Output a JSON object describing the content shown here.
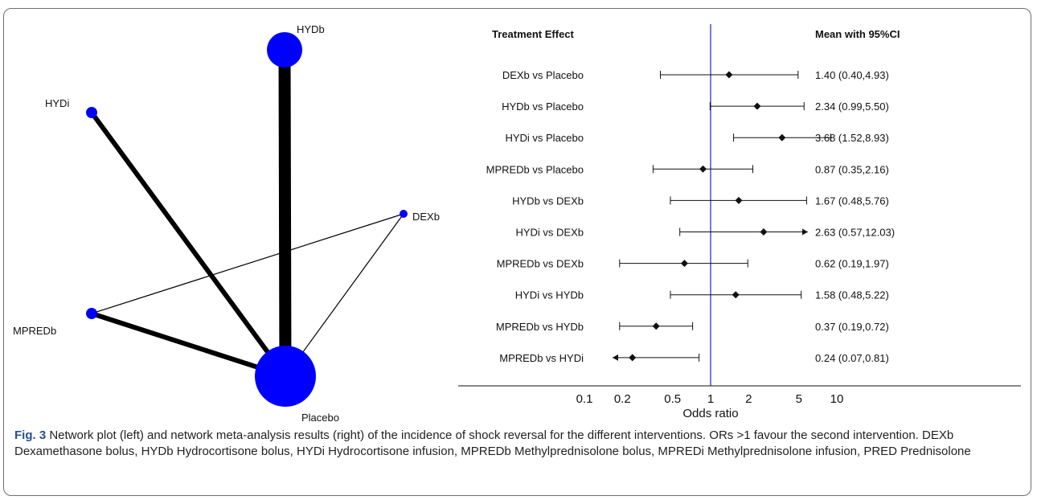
{
  "caption": {
    "fig_number": "Fig. 3",
    "text": "Network plot (left) and network meta-analysis results (right) of the incidence of shock reversal for the different interventions. ORs >1 favour the second intervention. DEXb Dexamethasone bolus, HYDb Hydrocortisone bolus, HYDi Hydrocortisone infusion, MPREDb Methylprednisolone bolus, MPREDi Methylprednisolone infusion, PRED Prednisolone"
  },
  "chart_data": [
    {
      "type": "network",
      "nodes": [
        {
          "id": "HYDb",
          "label": "HYDb",
          "size": "large"
        },
        {
          "id": "HYDi",
          "label": "HYDi",
          "size": "small"
        },
        {
          "id": "DEXb",
          "label": "DEXb",
          "size": "small"
        },
        {
          "id": "MPREDb",
          "label": "MPREDb",
          "size": "small"
        },
        {
          "id": "Placebo",
          "label": "Placebo",
          "size": "largest"
        }
      ],
      "edges": [
        {
          "from": "HYDb",
          "to": "Placebo",
          "weight": "thickest"
        },
        {
          "from": "HYDi",
          "to": "Placebo",
          "weight": "thick"
        },
        {
          "from": "MPREDb",
          "to": "Placebo",
          "weight": "thick"
        },
        {
          "from": "DEXb",
          "to": "Placebo",
          "weight": "thin"
        },
        {
          "from": "MPREDb",
          "to": "DEXb",
          "weight": "thin"
        }
      ],
      "node_color": "#0000ff",
      "edge_color": "#000000"
    },
    {
      "type": "forest",
      "header_left": "Treatment Effect",
      "header_right": "Mean with 95%CI",
      "xlabel": "Odds ratio",
      "x_scale": "log",
      "x_ticks": [
        0.1,
        0.2,
        0.5,
        1,
        2,
        5,
        10
      ],
      "x_tick_labels": [
        "0.1",
        "0.2",
        "0.5",
        "1",
        "2",
        "5",
        "10"
      ],
      "reference_line": 1,
      "reference_color": "#3333cc",
      "rows": [
        {
          "label": "DEXb vs Placebo",
          "mean": 1.4,
          "lower": 0.4,
          "upper": 4.93,
          "text": "1.40 (0.40,4.93)"
        },
        {
          "label": "HYDb vs Placebo",
          "mean": 2.34,
          "lower": 0.99,
          "upper": 5.5,
          "text": "2.34 (0.99,5.50)"
        },
        {
          "label": "HYDi vs Placebo",
          "mean": 3.68,
          "lower": 1.52,
          "upper": 8.93,
          "text": "3.68 (1.52,8.93)"
        },
        {
          "label": "MPREDb vs Placebo",
          "mean": 0.87,
          "lower": 0.35,
          "upper": 2.16,
          "text": "0.87 (0.35,2.16)"
        },
        {
          "label": "HYDb vs DEXb",
          "mean": 1.67,
          "lower": 0.48,
          "upper": 5.76,
          "text": "1.67 (0.48,5.76)"
        },
        {
          "label": "HYDi vs DEXb",
          "mean": 2.63,
          "lower": 0.57,
          "upper": 12.03,
          "text": "2.63 (0.57,12.03)",
          "arrow_right": true
        },
        {
          "label": "MPREDb vs DEXb",
          "mean": 0.62,
          "lower": 0.19,
          "upper": 1.97,
          "text": "0.62 (0.19,1.97)"
        },
        {
          "label": "HYDi vs HYDb",
          "mean": 1.58,
          "lower": 0.48,
          "upper": 5.22,
          "text": "1.58 (0.48,5.22)"
        },
        {
          "label": "MPREDb vs HYDb",
          "mean": 0.37,
          "lower": 0.19,
          "upper": 0.72,
          "text": "0.37 (0.19,0.72)"
        },
        {
          "label": "MPREDb vs HYDi",
          "mean": 0.24,
          "lower": 0.07,
          "upper": 0.81,
          "text": "0.24 (0.07,0.81)",
          "arrow_left": true
        }
      ]
    }
  ]
}
